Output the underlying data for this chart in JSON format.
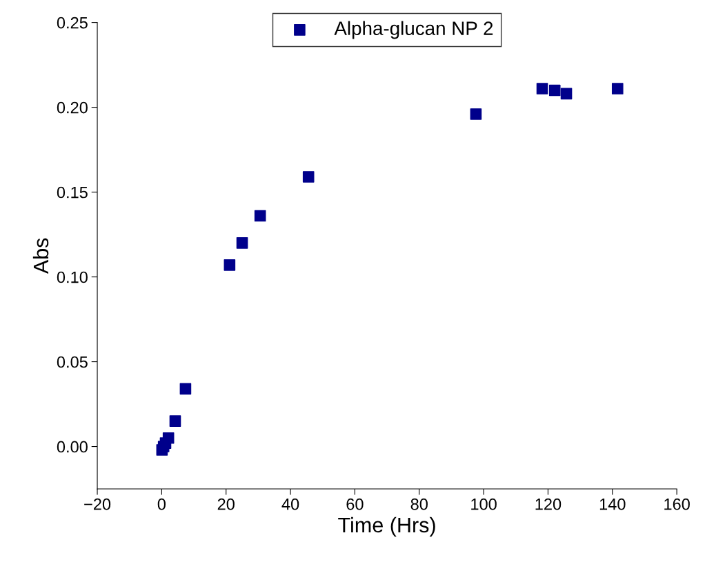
{
  "chart_data": {
    "type": "scatter",
    "xlabel": "Time (Hrs)",
    "ylabel": "Abs",
    "series": [
      {
        "name": "Alpha-glucan NP 2",
        "color": "#00008b",
        "marker": "square",
        "x": [
          0.1,
          0.6,
          1.2,
          2.1,
          4.2,
          7.4,
          21.1,
          25.0,
          30.6,
          45.6,
          97.6,
          118.2,
          122.1,
          125.7,
          141.6
        ],
        "values": [
          -0.002,
          0.0,
          0.002,
          0.005,
          0.015,
          0.034,
          0.107,
          0.12,
          0.136,
          0.159,
          0.196,
          0.211,
          0.21,
          0.208,
          0.211
        ]
      }
    ],
    "xlim": [
      -20,
      160
    ],
    "xticks": [
      {
        "value": -20,
        "label": "−20"
      },
      0,
      20,
      40,
      60,
      80,
      100,
      120,
      140,
      160
    ],
    "ylim": [
      -0.025,
      0.25
    ],
    "yticks": [
      {
        "value": 0,
        "label": "0.00"
      },
      {
        "value": 0.05,
        "label": "0.05"
      },
      {
        "value": 0.1,
        "label": "0.10"
      },
      {
        "value": 0.15,
        "label": "0.15"
      },
      {
        "value": 0.2,
        "label": "0.20"
      },
      {
        "value": 0.25,
        "label": "0.25"
      }
    ],
    "legend": "top",
    "grid": false
  }
}
